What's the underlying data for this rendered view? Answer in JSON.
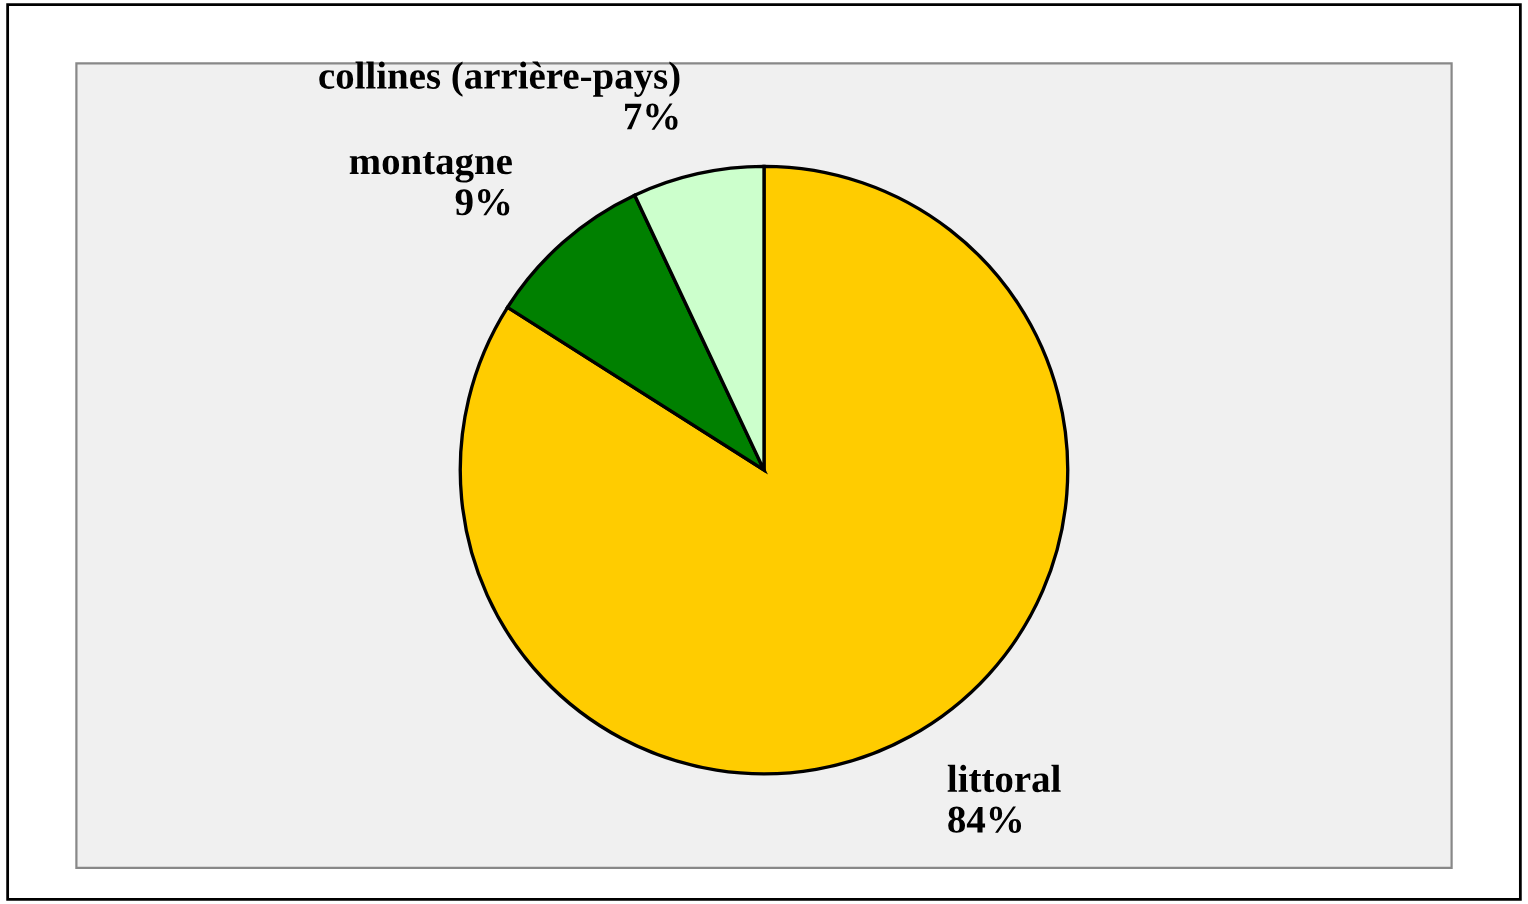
{
  "chart_data": {
    "type": "pie",
    "categories": [
      "littoral",
      "montagne",
      "collines (arrière-pays)"
    ],
    "values": [
      84,
      9,
      7
    ],
    "value_labels": [
      "84%",
      "9%",
      "7%"
    ],
    "colors": [
      "#ffcc00",
      "#008000",
      "#ccffcc"
    ],
    "legend": false
  }
}
